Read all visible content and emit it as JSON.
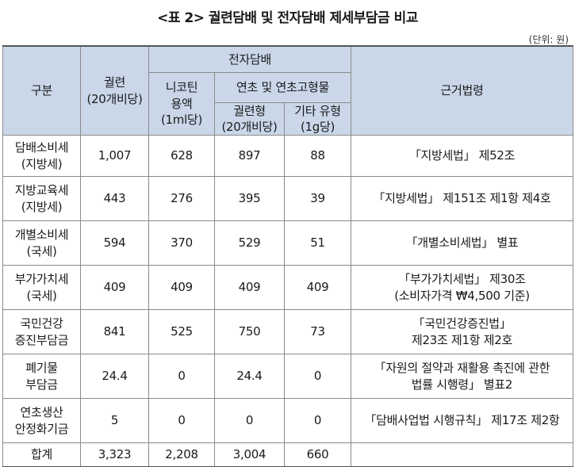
{
  "title": "<표 2> 궐련담배 및 전자담배 제세부담금 비교",
  "unit": "(단위: 원)",
  "header": {
    "category": "구분",
    "cigarette": [
      "궐련",
      "(20개비당)"
    ],
    "ecig": "전자담배",
    "nicotine": [
      "니코틴",
      "용액",
      "(1ml당)"
    ],
    "tobacco_group": "연초 및 연초고형물",
    "cig_type": [
      "궐련형",
      "(20개비당)"
    ],
    "other_type": [
      "기타 유형",
      "(1g당)"
    ],
    "law": "근거법령"
  },
  "rows": [
    {
      "name": [
        "담배소비세",
        "(지방세)"
      ],
      "cig": "1,007",
      "nic": "628",
      "ctype": "897",
      "other": "88",
      "law": [
        "「지방세법」 제52조"
      ]
    },
    {
      "name": [
        "지방교육세",
        "(지방세)"
      ],
      "cig": "443",
      "nic": "276",
      "ctype": "395",
      "other": "39",
      "law": [
        "「지방세법」 제151조 제1항 제4호"
      ]
    },
    {
      "name": [
        "개별소비세",
        "(국세)"
      ],
      "cig": "594",
      "nic": "370",
      "ctype": "529",
      "other": "51",
      "law": [
        "「개별소비세법」 별표"
      ]
    },
    {
      "name": [
        "부가가치세",
        "(국세)"
      ],
      "cig": "409",
      "nic": "409",
      "ctype": "409",
      "other": "409",
      "law": [
        "「부가가치세법」 제30조",
        "(소비자가격 ₩4,500 기준)"
      ]
    },
    {
      "name": [
        "국민건강",
        "증진부담금"
      ],
      "cig": "841",
      "nic": "525",
      "ctype": "750",
      "other": "73",
      "law": [
        "「국민건강증진법」",
        "제23조 제1항 제2호"
      ]
    },
    {
      "name": [
        "폐기물",
        "부담금"
      ],
      "cig": "24.4",
      "nic": "0",
      "ctype": "24.4",
      "other": "0",
      "law": [
        "「자원의 절약과 재활용 촉진에 관한",
        "법률 시행령」 별표2"
      ]
    },
    {
      "name": [
        "연초생산",
        "안정화기금"
      ],
      "cig": "5",
      "nic": "0",
      "ctype": "0",
      "other": "0",
      "law": [
        "「담배사업법 시행규칙」 제17조 제2항"
      ]
    }
  ],
  "total": {
    "name": "합계",
    "cig": "3,323",
    "nic": "2,208",
    "ctype": "3,004",
    "other": "660",
    "law": ""
  }
}
